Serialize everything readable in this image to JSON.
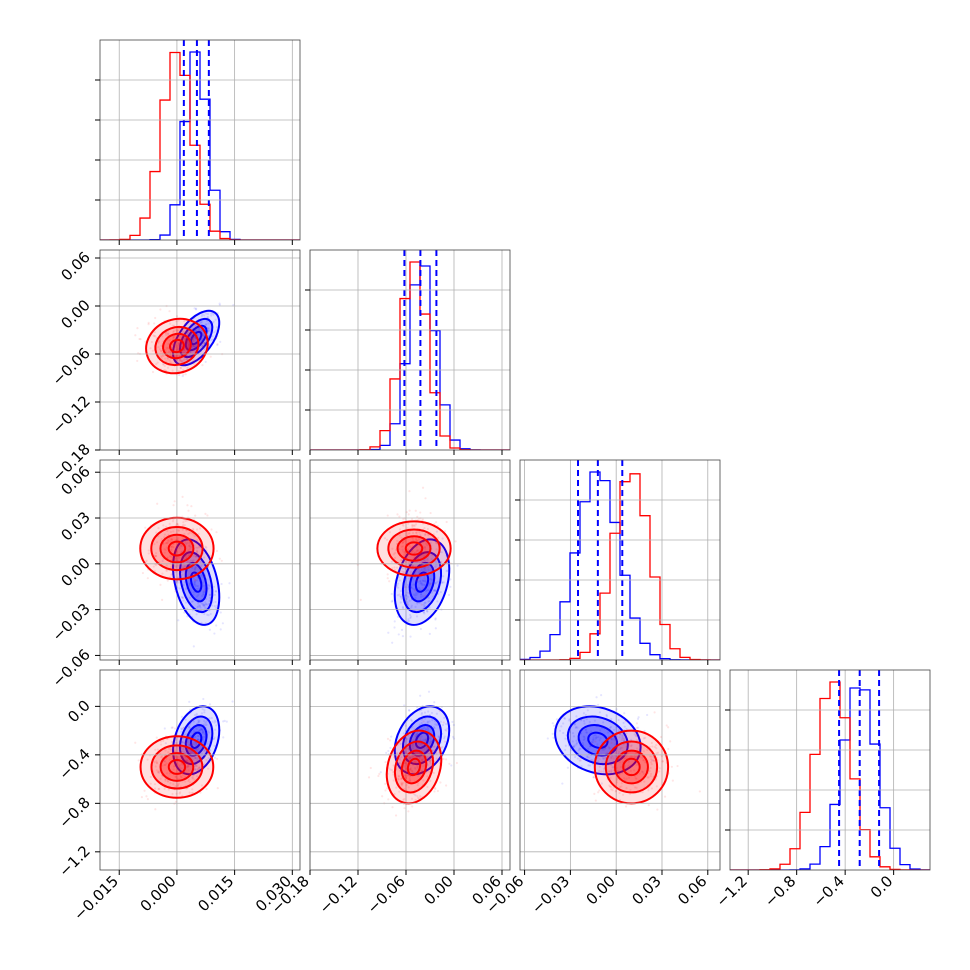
{
  "chart_data": {
    "type": "corner",
    "title": "",
    "parameter_labels": [
      "",
      "",
      "",
      ""
    ],
    "colors": {
      "series_a": "#0000ff",
      "series_b": "#ff0000",
      "quantile_line": "#0000ff",
      "grid": "#b0b0b0",
      "axes": "#000000"
    },
    "grid": true,
    "legend": "none",
    "series": [
      {
        "color": "#0000ff",
        "means": [
          0.005,
          -0.04,
          -0.012,
          -0.28
        ],
        "sigmas": [
          0.003,
          0.017,
          0.014,
          0.14
        ],
        "correlations": [
          [
            0,
            1,
            0.55
          ],
          [
            0,
            2,
            -0.35
          ],
          [
            0,
            3,
            0.3
          ],
          [
            1,
            2,
            0.3
          ],
          [
            1,
            3,
            0.3
          ],
          [
            2,
            3,
            -0.2
          ]
        ]
      },
      {
        "color": "#ff0000",
        "means": [
          0.0,
          -0.05,
          0.01,
          -0.5
        ],
        "sigmas": [
          0.004,
          0.017,
          0.012,
          0.15
        ],
        "correlations": [
          [
            0,
            1,
            0.1
          ],
          [
            0,
            2,
            0.0
          ],
          [
            0,
            3,
            0.0
          ],
          [
            1,
            2,
            0.0
          ],
          [
            1,
            3,
            0.2
          ],
          [
            2,
            3,
            0.0
          ]
        ]
      }
    ],
    "quantiles": [
      [
        0.0018,
        0.0052,
        0.0083
      ],
      [
        -0.062,
        -0.042,
        -0.022
      ],
      [
        -0.025,
        -0.012,
        0.004
      ],
      [
        -0.45,
        -0.28,
        -0.12
      ]
    ],
    "axes": [
      {
        "range": [
          -0.02,
          0.032
        ],
        "ticks": [
          -0.015,
          0.0,
          0.015,
          0.03
        ],
        "tick_labels": [
          "−0.015",
          "0.000",
          "0.015",
          "0.030"
        ]
      },
      {
        "range": [
          -0.18,
          0.07
        ],
        "ticks": [
          -0.18,
          -0.12,
          -0.06,
          0.0,
          0.06
        ],
        "tick_labels": [
          "−0.18",
          "−0.12",
          "−0.06",
          "0.00",
          "0.06"
        ]
      },
      {
        "range": [
          -0.063,
          0.068
        ],
        "ticks": [
          -0.06,
          -0.03,
          0.0,
          0.03,
          0.06
        ],
        "tick_labels": [
          "−0.06",
          "−0.03",
          "0.00",
          "0.03",
          "0.06"
        ]
      },
      {
        "range": [
          -1.35,
          0.3
        ],
        "ticks": [
          -1.2,
          -0.8,
          -0.4,
          0.0
        ],
        "tick_labels": [
          "−1.2",
          "−0.8",
          "−0.4",
          "0.0"
        ]
      }
    ]
  }
}
